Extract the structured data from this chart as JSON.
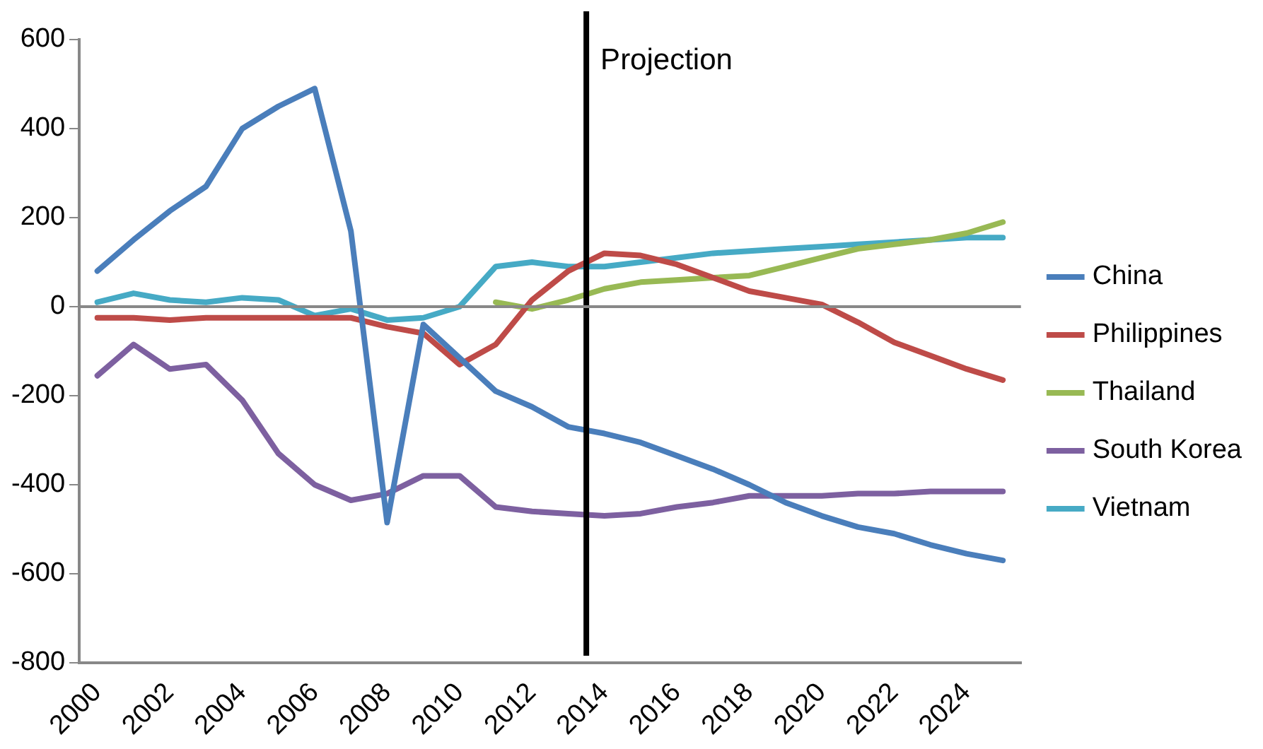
{
  "chart_data": {
    "type": "line",
    "x": [
      2000,
      2001,
      2002,
      2003,
      2004,
      2005,
      2006,
      2007,
      2008,
      2009,
      2010,
      2011,
      2012,
      2013,
      2014,
      2015,
      2016,
      2017,
      2018,
      2019,
      2020,
      2021,
      2022,
      2023,
      2024,
      2025
    ],
    "xlim": [
      1999.5,
      2025.5
    ],
    "xticks": [
      2000,
      2002,
      2004,
      2006,
      2008,
      2010,
      2012,
      2014,
      2016,
      2018,
      2020,
      2022,
      2024
    ],
    "ylim": [
      -800,
      600
    ],
    "yticks": [
      -800,
      -600,
      -400,
      -200,
      0,
      200,
      400,
      600
    ],
    "series": [
      {
        "name": "China",
        "color": "#4a7ebb",
        "values": [
          80,
          150,
          215,
          270,
          400,
          450,
          490,
          170,
          -485,
          -40,
          -115,
          -190,
          -225,
          -270,
          -285,
          -305,
          -335,
          -365,
          -400,
          -440,
          -470,
          -495,
          -510,
          -535,
          -555,
          -570
        ]
      },
      {
        "name": "Philippines",
        "color": "#be4b48",
        "values": [
          -25,
          -25,
          -30,
          -25,
          -25,
          -25,
          -25,
          -25,
          -45,
          -60,
          -130,
          -85,
          15,
          80,
          120,
          115,
          95,
          65,
          35,
          20,
          5,
          -35,
          -80,
          -110,
          -140,
          -165
        ]
      },
      {
        "name": "Thailand",
        "color": "#98b954",
        "values": [
          null,
          null,
          null,
          null,
          null,
          null,
          null,
          null,
          null,
          null,
          null,
          10,
          -5,
          15,
          40,
          55,
          60,
          65,
          70,
          90,
          110,
          130,
          140,
          150,
          165,
          190
        ]
      },
      {
        "name": "South Korea",
        "color": "#7d60a0",
        "values": [
          -155,
          -85,
          -140,
          -130,
          -210,
          -330,
          -400,
          -435,
          -420,
          -380,
          -380,
          -450,
          -460,
          -465,
          -470,
          -465,
          -450,
          -440,
          -425,
          -425,
          -425,
          -420,
          -420,
          -415,
          -415,
          -415
        ]
      },
      {
        "name": "Vietnam",
        "color": "#46aac5",
        "values": [
          10,
          30,
          15,
          10,
          20,
          15,
          -20,
          -5,
          -30,
          -25,
          0,
          90,
          100,
          90,
          90,
          100,
          110,
          120,
          125,
          130,
          135,
          140,
          145,
          150,
          155,
          155
        ]
      }
    ],
    "ref_lines": [
      {
        "axis": "x",
        "value": 2013.5,
        "label": "Projection",
        "color": "#000000"
      },
      {
        "axis": "y",
        "value": 0,
        "color": "#888888"
      }
    ],
    "legend": "right",
    "grid": false,
    "marker": "none",
    "line_style": "solid"
  }
}
